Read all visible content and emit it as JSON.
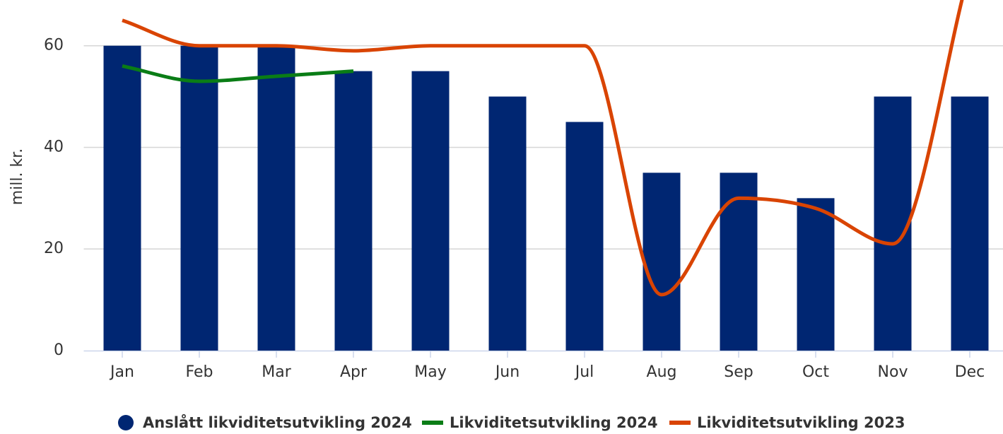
{
  "chart_data": {
    "type": "bar-line",
    "y_label": "mill. kr.",
    "categories": [
      "Jan",
      "Feb",
      "Mar",
      "Apr",
      "May",
      "Jun",
      "Jul",
      "Aug",
      "Sep",
      "Oct",
      "Nov",
      "Dec"
    ],
    "series": [
      {
        "name": "Anslått likviditetsutvikling 2024",
        "type": "bar",
        "color": "#002672",
        "values": [
          60,
          60,
          60,
          55,
          55,
          50,
          45,
          35,
          35,
          30,
          50,
          50
        ]
      },
      {
        "name": "Likviditetsutvikling 2024",
        "type": "line",
        "color": "#0a7d16",
        "values": [
          56,
          53,
          54,
          55,
          null,
          null,
          null,
          null,
          null,
          null,
          null,
          null
        ]
      },
      {
        "name": "Likviditetsutvikling 2023",
        "type": "line",
        "color": "#d94403",
        "values": [
          65,
          60,
          60,
          59,
          60,
          60,
          60,
          11,
          30,
          28,
          21,
          75
        ]
      }
    ],
    "ylim": [
      0,
      69
    ],
    "yticks": [
      0,
      20,
      40,
      60
    ],
    "grid": true,
    "legend": "bottom"
  }
}
